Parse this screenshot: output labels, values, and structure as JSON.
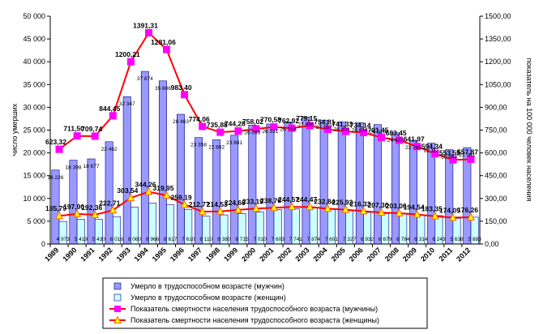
{
  "chart_data": {
    "type": "bar",
    "title": "",
    "categories": [
      "1989",
      "1990",
      "1991",
      "1992",
      "1993",
      "1994",
      "1995",
      "1996",
      "1997",
      "1998",
      "1999",
      "2000",
      "2001",
      "2002",
      "2003",
      "2004",
      "2005",
      "2006",
      "2007",
      "2008",
      "2009",
      "2010",
      "2011",
      "2012"
    ],
    "ylabel_left": "число умерших",
    "ylabel_right": "показатель на 100 000 человек населения",
    "ylim_left": [
      0,
      50000
    ],
    "ylim_right": [
      0,
      1500
    ],
    "yticks_left": [
      "0",
      "5 000",
      "10 000",
      "15 000",
      "20 000",
      "25 000",
      "30 000",
      "35 000",
      "40 000",
      "45 000",
      "50 000"
    ],
    "yticks_right": [
      "0,00",
      "150,00",
      "300,00",
      "450,00",
      "600,00",
      "750,00",
      "900,00",
      "1050,00",
      "1200,00",
      "1350,00",
      "1500,00"
    ],
    "bar_series": [
      {
        "name": "Умерло в трудоспособном возрасте (мужчин)",
        "color": "#9999ff",
        "values": [
          16226,
          18398,
          18677,
          22462,
          32347,
          37874,
          35806,
          28463,
          23358,
          22882,
          23881,
          26093,
          26331,
          26799,
          27886,
          27187,
          26801,
          26616,
          26210,
          24420,
          22780,
          22112,
          20694,
          21161
        ],
        "labels": [
          "16 226",
          "18 398",
          "18 677",
          "22 462",
          "32 347",
          "37 874",
          "35 806",
          "28 463",
          "23 358",
          "22 882",
          "23 881",
          "26 093",
          "26 331",
          "26 799",
          "27 886",
          "27 187",
          "26 801",
          "26 616",
          "26 210",
          "24 420",
          "22 780",
          "22 112",
          "20 694",
          "21 161"
        ]
      },
      {
        "name": "Умерло в трудоспособном возрасте (женщин)",
        "color": "#ccffff",
        "values": [
          4973,
          5419,
          5430,
          6016,
          8060,
          8966,
          8617,
          7610,
          6110,
          6380,
          6715,
          7010,
          7603,
          7741,
          7874,
          7601,
          7327,
          6932,
          6679,
          6784,
          6314,
          6243,
          5638,
          5883
        ],
        "labels": [
          "4 973",
          "5 419",
          "5 430",
          "6 016",
          "8 060",
          "8 966",
          "8 617",
          "7 610",
          "6 110",
          "6 380",
          "6 715",
          "7 010",
          "7 603",
          "7 741",
          "7 874",
          "7 601",
          "7 327",
          "6 932",
          "6 679",
          "6 784",
          "6 314",
          "6 243",
          "5 638",
          "5 883"
        ]
      }
    ],
    "line_series": [
      {
        "name": "Показатель смертности населения трудоспособного возраста (мужчины)",
        "color": "#ff00ff",
        "line_color": "#ff0000",
        "marker": "square",
        "values": [
          623.32,
          711.5,
          709.74,
          844.45,
          1200.21,
          1391.31,
          1281.06,
          983.4,
          774.06,
          735.88,
          744.28,
          758.02,
          770.58,
          762.92,
          779.15,
          754.81,
          741.33,
          734.14,
          701.45,
          683.45,
          641.97,
          594.34,
          553.55,
          557.87
        ],
        "labels": [
          "623,32",
          "711,50",
          "709,74",
          "844,45",
          "1200,21",
          "1391,31",
          "1281,06",
          "983,40",
          "774,06",
          "735,88",
          "744,28",
          "758,02",
          "770,58",
          "762,92",
          "779,15",
          "754,81",
          "741,33",
          "734,14",
          "701,45",
          "683,45",
          "641,97",
          "594,34",
          "553,55",
          "557,87"
        ]
      },
      {
        "name": "Показатель смертности населения трудоспособного возраста (женщины)",
        "color": "#ffff00",
        "line_color": "#ff0000",
        "marker": "triangle",
        "values": [
          185.79,
          197.9,
          192.36,
          222.71,
          303.54,
          344.26,
          319.95,
          259.19,
          212.77,
          214.53,
          224.6,
          233.19,
          238.76,
          244.57,
          244.47,
          232.84,
          225.92,
          216.33,
          207.3,
          203.06,
          194.54,
          183.35,
          174.09,
          176.26
        ],
        "labels": [
          "185,79",
          "197,90",
          "192,36",
          "222,71",
          "303,54",
          "344,26",
          "319,95",
          "259,19",
          "212,77",
          "214,53",
          "224,60",
          "233,19",
          "238,76",
          "244,57",
          "244,47",
          "232,84",
          "225,92",
          "216,33",
          "207,30",
          "203,06",
          "194,54",
          "183,35",
          "174,09",
          "176,26"
        ]
      }
    ],
    "grid": false,
    "legend_position": "bottom"
  }
}
